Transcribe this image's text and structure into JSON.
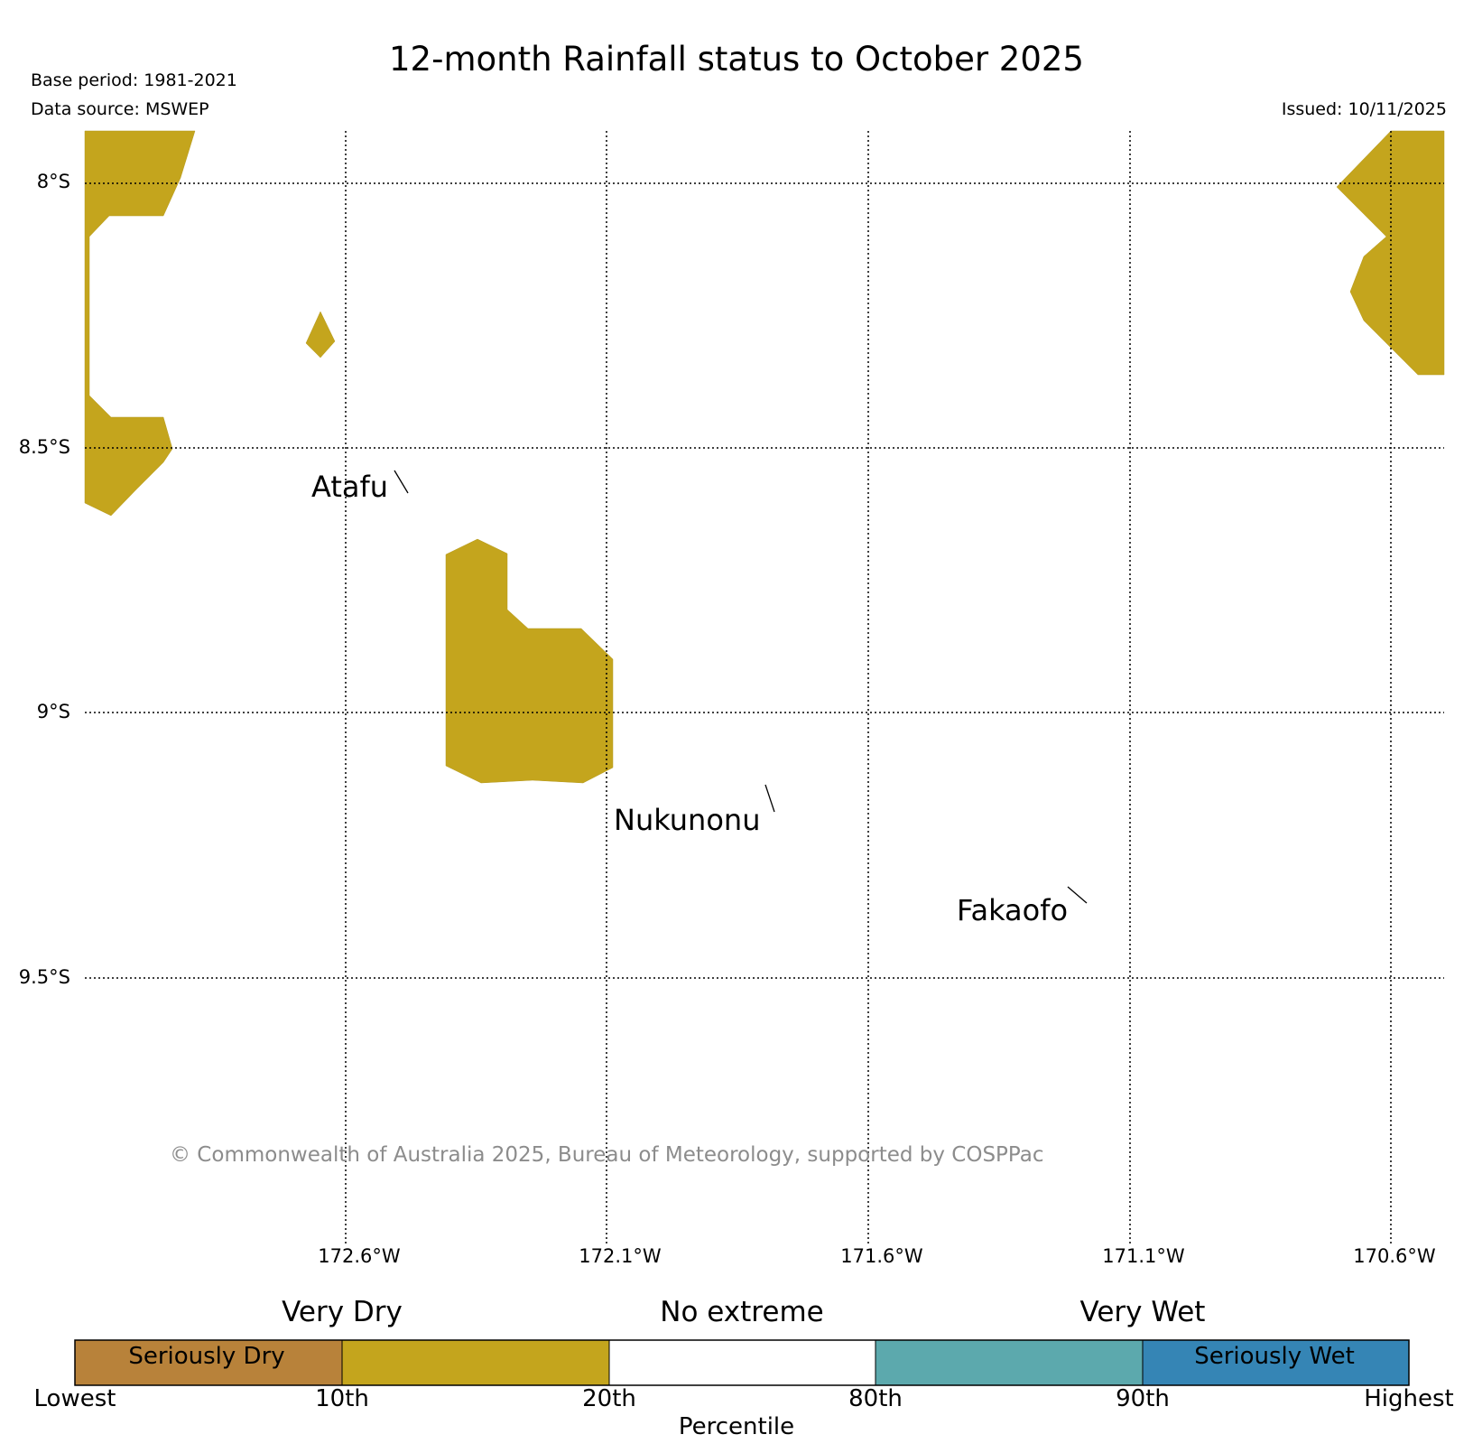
{
  "title": "12-month Rainfall status to October 2025",
  "meta": {
    "base_period": "Base period: 1981-2021",
    "data_source": "Data source: MSWEP",
    "issued": "Issued: 10/11/2025"
  },
  "map": {
    "lat_labels": [
      "8°S",
      "8.5°S",
      "9°S",
      "9.5°S"
    ],
    "lon_labels": [
      "172.6°W",
      "172.1°W",
      "171.6°W",
      "171.1°W",
      "170.6°W"
    ],
    "places": [
      "Atafu",
      "Nukunonu",
      "Fakaofo"
    ],
    "fill_color": "#c4a51d",
    "copyright": "© Commonwealth of Australia 2025, Bureau of Meteorology, supported by COSPPac"
  },
  "legend": {
    "categories": [
      "Very Dry",
      "No extreme",
      "Very Wet"
    ],
    "swatches": [
      {
        "label": "Seriously Dry",
        "color": "#b8823a"
      },
      {
        "label": "",
        "color": "#c4a51d"
      },
      {
        "label": "",
        "color": "#ffffff"
      },
      {
        "label": "",
        "color": "#5ca9ad"
      },
      {
        "label": "Seriously Wet",
        "color": "#3585b5"
      }
    ],
    "ticks": [
      "Lowest",
      "10th",
      "20th",
      "80th",
      "90th",
      "Highest"
    ],
    "xlabel": "Percentile"
  }
}
